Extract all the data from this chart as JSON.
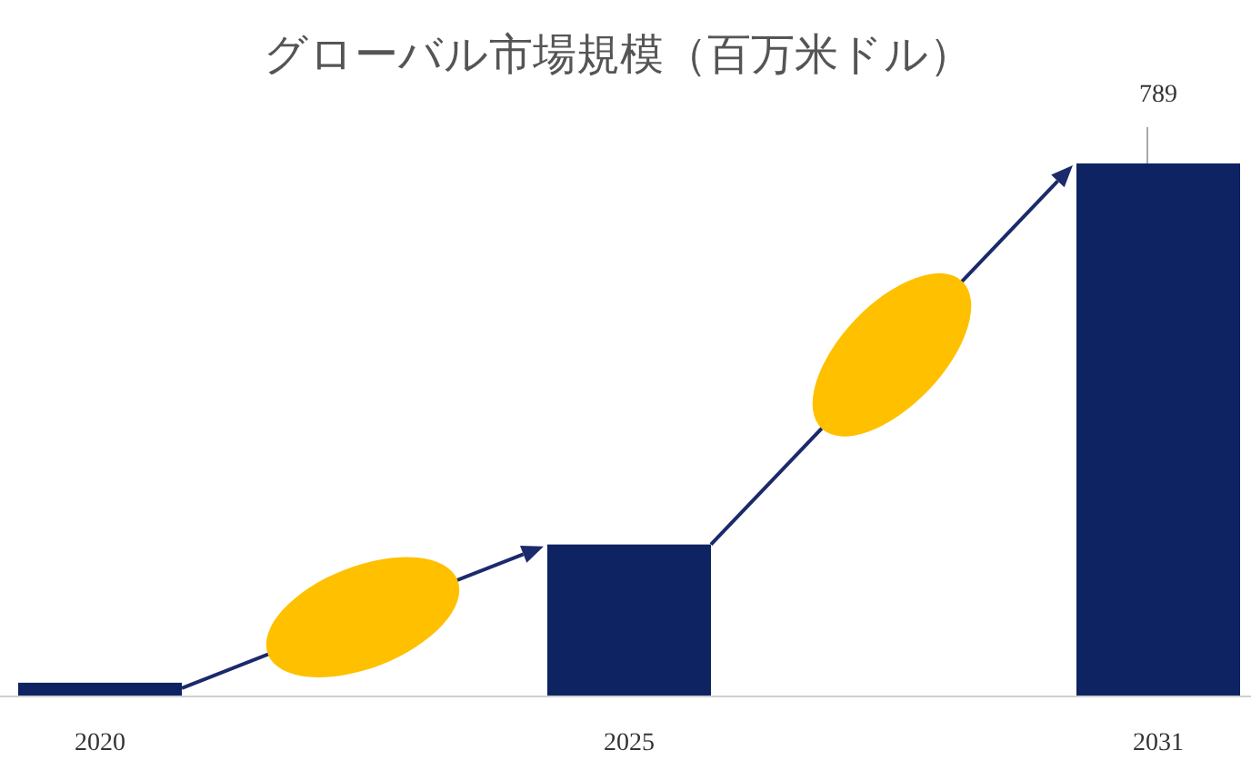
{
  "chart_data": {
    "type": "bar",
    "title": "グローバル市場規模（百万米ドル）",
    "categories": [
      "2020",
      "2025",
      "2031"
    ],
    "values": [
      19,
      224,
      789
    ],
    "value_labels": [
      null,
      null,
      "789"
    ],
    "color": "#0e2361"
  }
}
